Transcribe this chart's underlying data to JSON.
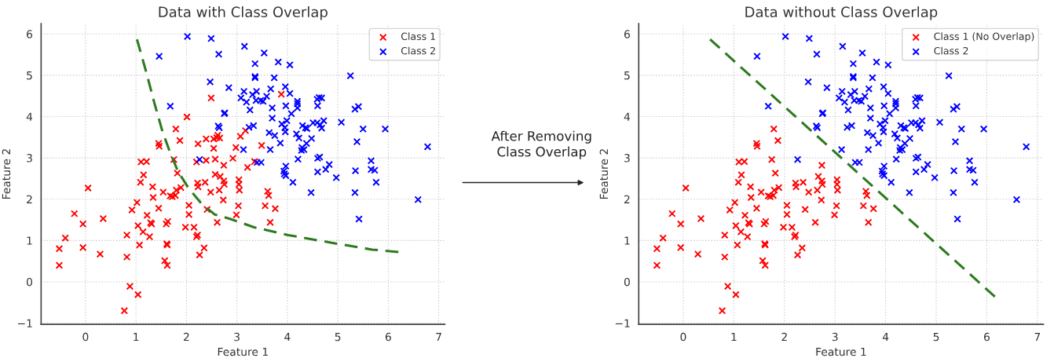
{
  "chart_data": [
    {
      "type": "scatter",
      "title": "Data with Class Overlap",
      "xlabel": "Feature 1",
      "ylabel": "Feature 2",
      "xlim": [
        -0.88,
        7.12
      ],
      "ylim": [
        -1.03,
        6.25
      ],
      "xticks": [
        0,
        1,
        2,
        3,
        4,
        5,
        6,
        7
      ],
      "yticks": [
        {
          "value": -1,
          "label": "−1"
        },
        0,
        1,
        2,
        3,
        4,
        5,
        6
      ],
      "grid": true,
      "legend": "top right",
      "annotations": [
        "After Removing\nClass Overlap"
      ],
      "series": [
        {
          "name": "Class 1",
          "color": "#ff0000",
          "marker": "cross",
          "x": [
            -0.52,
            -0.52,
            -0.4,
            -0.22,
            -0.05,
            -0.05,
            0.05,
            0.29,
            0.35,
            0.82,
            0.82,
            0.88,
            0.92,
            1.02,
            1.04,
            0.77,
            1.04,
            1.07,
            1.09,
            1.1,
            1.21,
            1.15,
            1.14,
            1.22,
            1.27,
            1.29,
            1.31,
            1.33,
            1.34,
            1.45,
            1.46,
            1.45,
            1.54,
            1.57,
            1.61,
            1.62,
            1.6,
            1.63,
            1.62,
            1.68,
            1.72,
            1.75,
            1.79,
            1.82,
            1.8,
            1.78,
            1.87,
            1.89,
            2.01,
            2.05,
            2.05,
            1.98,
            2.15,
            2.22,
            2.2,
            2.26,
            2.35,
            2.2,
            2.23,
            2.22,
            2.23,
            2.39,
            2.39,
            2.37,
            2.41,
            2.48,
            2.49,
            2.54,
            2.54,
            2.57,
            2.57,
            2.62,
            2.66,
            2.6,
            2.67,
            2.65,
            2.74,
            2.74,
            2.75,
            2.73,
            2.61,
            3.88,
            3.17,
            3.07,
            2.98,
            2.92,
            3.49,
            3.21,
            3.35,
            3.04,
            3.04,
            3.05,
            3.61,
            3.63,
            3.03,
            2.99,
            3.56,
            3.76,
            3.66
          ],
          "values": [
            0.8,
            0.4,
            1.06,
            1.65,
            1.4,
            0.83,
            2.27,
            0.67,
            1.53,
            1.13,
            0.6,
            -0.11,
            1.74,
            1.92,
            -0.31,
            -0.7,
            1.36,
            0.89,
            2.41,
            2.9,
            2.91,
            2.59,
            1.21,
            1.61,
            1.09,
            1.43,
            1.4,
            2.3,
            2.04,
            3.35,
            3.28,
            1.78,
            2.17,
            0.51,
            0.92,
            0.4,
            1.4,
            1.46,
            0.89,
            2.08,
            2.06,
            2.96,
            3.7,
            2.63,
            2.22,
            2.09,
            3.42,
            2.28,
            3.99,
            1.85,
            1.63,
            1.32,
            1.32,
            1.13,
            1.09,
            0.65,
            0.82,
            2.9,
            3.34,
            2.39,
            2.3,
            3.46,
            2.94,
            2.41,
            1.75,
            2.17,
            4.45,
            3.46,
            3.23,
            2.97,
            2.6,
            3.55,
            3.48,
            3.49,
            2.55,
            2.22,
            2.82,
            2.44,
            2.36,
            1.98,
            1.44,
            4.54,
            3.66,
            3.52,
            3.25,
            2.99,
            3.3,
            2.77,
            2.91,
            2.47,
            2.36,
            2.22,
            2.19,
            2.09,
            1.84,
            1.62,
            1.84,
            1.77,
            1.44
          ]
        },
        {
          "name": "Class 2",
          "color": "#0000ff",
          "marker": "cross",
          "x": [
            2.02,
            2.49,
            2.64,
            1.46,
            2.47,
            2.84,
            1.68,
            2.75,
            2.76,
            2.63,
            2.65,
            2.26,
            3.15,
            3.54,
            3.36,
            3.82,
            4.05,
            3.36,
            3.36,
            3.74,
            5.25,
            3.14,
            3.08,
            3.19,
            3.26,
            3.31,
            3.39,
            3.38,
            3.47,
            3.52,
            3.59,
            3.67,
            3.96,
            4.05,
            3.7,
            3.97,
            4.08,
            3.7,
            4.2,
            4.2,
            4.2,
            4.59,
            4.63,
            4.68,
            4.6,
            5.34,
            5.41,
            3.89,
            3.99,
            3.95,
            3.96,
            3.64,
            3.75,
            3.86,
            3.24,
            3.33,
            4.3,
            4.36,
            4.39,
            4.51,
            4.59,
            4.65,
            4.68,
            4.72,
            5.07,
            5.5,
            5.94,
            4.18,
            4.23,
            4.48,
            4.38,
            4.29,
            4.33,
            4.28,
            5.38,
            3.13,
            3.66,
            6.78,
            4.21,
            4.6,
            4.64,
            4.83,
            4.76,
            4.6,
            4.97,
            5.35,
            5.66,
            5.66,
            5.73,
            5.76,
            3.4,
            3.48,
            3.97,
            3.93,
            3.94,
            3.97,
            4.11,
            4.47,
            5.34,
            6.59,
            5.42
          ],
          "values": [
            5.94,
            5.89,
            5.51,
            5.46,
            4.84,
            4.7,
            4.25,
            4.07,
            4.09,
            3.77,
            3.73,
            2.96,
            5.7,
            5.54,
            5.28,
            5.32,
            5.25,
            4.97,
            4.94,
            4.94,
            4.99,
            4.61,
            4.45,
            4.35,
            4.16,
            4.53,
            4.61,
            4.39,
            4.39,
            4.37,
            4.49,
            4.67,
            4.72,
            4.56,
            4.21,
            4.26,
            4.07,
            3.96,
            4.37,
            4.31,
            4.21,
            4.42,
            4.46,
            4.45,
            4.26,
            4.18,
            4.24,
            3.82,
            3.9,
            3.73,
            3.63,
            3.61,
            3.54,
            3.36,
            3.74,
            3.78,
            3.78,
            3.73,
            3.71,
            3.85,
            3.85,
            3.8,
            3.72,
            3.9,
            3.86,
            3.7,
            3.7,
            3.58,
            3.48,
            3.47,
            3.35,
            3.25,
            3.2,
            3.18,
            3.39,
            3.2,
            3.2,
            3.27,
            2.97,
            2.99,
            3.02,
            2.84,
            2.72,
            2.66,
            2.52,
            2.69,
            2.93,
            2.72,
            2.7,
            2.41,
            2.89,
            2.89,
            2.8,
            2.68,
            2.61,
            2.57,
            2.41,
            2.16,
            2.16,
            1.99,
            1.52
          ]
        },
        {
          "type": "line",
          "color": "#2d7a1e",
          "line_style": "dashed",
          "x": [
            1.02,
            1.21,
            1.36,
            1.52,
            1.67,
            1.83,
            2.04,
            2.3,
            2.56,
            2.85,
            3.34,
            4.02,
            4.9,
            5.68,
            6.2
          ],
          "values": [
            5.87,
            5.05,
            4.35,
            3.66,
            3.15,
            2.68,
            2.27,
            1.89,
            1.63,
            1.53,
            1.32,
            1.13,
            0.94,
            0.78,
            0.72
          ]
        }
      ]
    },
    {
      "type": "scatter",
      "title": "Data without Class Overlap",
      "xlabel": "Feature 1",
      "ylabel": "Feature 2",
      "xlim": [
        -0.88,
        7.12
      ],
      "ylim": [
        -1.03,
        6.25
      ],
      "xticks": [
        0,
        1,
        2,
        3,
        4,
        5,
        6,
        7
      ],
      "yticks": [
        {
          "value": -1,
          "label": "−1"
        },
        0,
        1,
        2,
        3,
        4,
        5,
        6
      ],
      "grid": true,
      "legend": "top right",
      "series": [
        {
          "name": "Class 1 (No Overlap)",
          "color": "#ff0000",
          "marker": "cross",
          "x": [
            -0.52,
            -0.52,
            -0.4,
            -0.22,
            -0.05,
            -0.05,
            0.05,
            0.29,
            0.35,
            0.82,
            0.82,
            0.88,
            0.92,
            1.02,
            1.04,
            0.77,
            1.04,
            1.07,
            1.09,
            1.1,
            1.21,
            1.15,
            1.14,
            1.22,
            1.27,
            1.29,
            1.31,
            1.33,
            1.34,
            1.45,
            1.46,
            1.45,
            1.54,
            1.57,
            1.61,
            1.62,
            1.6,
            1.63,
            1.62,
            1.68,
            1.72,
            1.75,
            1.79,
            1.82,
            1.8,
            1.78,
            1.87,
            1.89,
            2.05,
            2.05,
            1.98,
            2.15,
            2.22,
            2.2,
            2.26,
            2.35,
            2.22,
            2.23,
            2.37,
            2.41,
            2.48,
            2.67,
            2.65,
            2.74,
            2.74,
            2.75,
            2.73,
            2.61,
            3.04,
            3.04,
            3.05,
            3.61,
            3.63,
            3.03,
            2.99,
            3.56,
            3.76,
            3.66
          ],
          "values": [
            0.8,
            0.4,
            1.06,
            1.65,
            1.4,
            0.83,
            2.27,
            0.67,
            1.53,
            1.13,
            0.6,
            -0.11,
            1.74,
            1.92,
            -0.31,
            -0.7,
            1.36,
            0.89,
            2.41,
            2.9,
            2.91,
            2.59,
            1.21,
            1.61,
            1.09,
            1.43,
            1.4,
            2.3,
            2.04,
            3.35,
            3.28,
            1.78,
            2.17,
            0.51,
            0.92,
            0.4,
            1.4,
            1.46,
            0.89,
            2.08,
            2.06,
            2.96,
            3.7,
            2.63,
            2.22,
            2.09,
            3.42,
            2.28,
            1.85,
            1.63,
            1.32,
            1.32,
            1.13,
            1.09,
            0.65,
            0.82,
            2.39,
            2.3,
            2.41,
            1.75,
            2.17,
            2.55,
            2.22,
            2.82,
            2.44,
            2.36,
            1.98,
            1.44,
            2.47,
            2.36,
            2.22,
            2.19,
            2.09,
            1.84,
            1.62,
            1.84,
            1.77,
            1.44
          ]
        },
        {
          "name": "Class 2",
          "color": "#0000ff",
          "marker": "cross",
          "x": [
            2.02,
            2.49,
            2.64,
            1.46,
            2.47,
            2.84,
            1.68,
            2.75,
            2.76,
            2.63,
            2.65,
            2.26,
            3.15,
            3.54,
            3.36,
            3.82,
            4.05,
            3.36,
            3.36,
            3.74,
            5.25,
            3.14,
            3.08,
            3.19,
            3.26,
            3.31,
            3.39,
            3.38,
            3.47,
            3.52,
            3.59,
            3.67,
            3.96,
            4.05,
            3.7,
            3.97,
            4.08,
            3.7,
            4.2,
            4.2,
            4.2,
            4.59,
            4.63,
            4.68,
            4.6,
            5.34,
            5.41,
            3.89,
            3.99,
            3.95,
            3.96,
            3.64,
            3.75,
            3.86,
            3.24,
            3.33,
            4.3,
            4.36,
            4.39,
            4.51,
            4.59,
            4.65,
            4.68,
            4.72,
            5.07,
            5.5,
            5.94,
            4.18,
            4.23,
            4.48,
            4.38,
            4.29,
            4.33,
            4.28,
            5.38,
            3.13,
            3.66,
            6.78,
            4.21,
            4.6,
            4.64,
            4.83,
            4.76,
            4.6,
            4.97,
            5.35,
            5.66,
            5.66,
            5.73,
            5.76,
            3.4,
            3.48,
            3.97,
            3.93,
            3.94,
            3.97,
            4.11,
            4.47,
            5.34,
            6.59,
            5.42
          ],
          "values": [
            5.94,
            5.89,
            5.51,
            5.46,
            4.84,
            4.7,
            4.25,
            4.07,
            4.09,
            3.77,
            3.73,
            2.96,
            5.7,
            5.54,
            5.28,
            5.32,
            5.25,
            4.97,
            4.94,
            4.94,
            4.99,
            4.61,
            4.45,
            4.35,
            4.16,
            4.53,
            4.61,
            4.39,
            4.39,
            4.37,
            4.49,
            4.67,
            4.72,
            4.56,
            4.21,
            4.26,
            4.07,
            3.96,
            4.37,
            4.31,
            4.21,
            4.42,
            4.46,
            4.45,
            4.26,
            4.18,
            4.24,
            3.82,
            3.9,
            3.73,
            3.63,
            3.61,
            3.54,
            3.36,
            3.74,
            3.78,
            3.78,
            3.73,
            3.71,
            3.85,
            3.85,
            3.8,
            3.72,
            3.9,
            3.86,
            3.7,
            3.7,
            3.58,
            3.48,
            3.47,
            3.35,
            3.25,
            3.2,
            3.18,
            3.39,
            3.2,
            3.2,
            3.27,
            2.97,
            2.99,
            3.02,
            2.84,
            2.72,
            2.66,
            2.52,
            2.69,
            2.93,
            2.72,
            2.7,
            2.41,
            2.89,
            2.89,
            2.8,
            2.68,
            2.61,
            2.57,
            2.41,
            2.16,
            2.16,
            1.99,
            1.52
          ]
        },
        {
          "type": "line",
          "color": "#2d7a1e",
          "line_style": "dashed",
          "x": [
            0.53,
            6.16
          ],
          "values": [
            5.87,
            -0.36
          ]
        }
      ]
    }
  ]
}
